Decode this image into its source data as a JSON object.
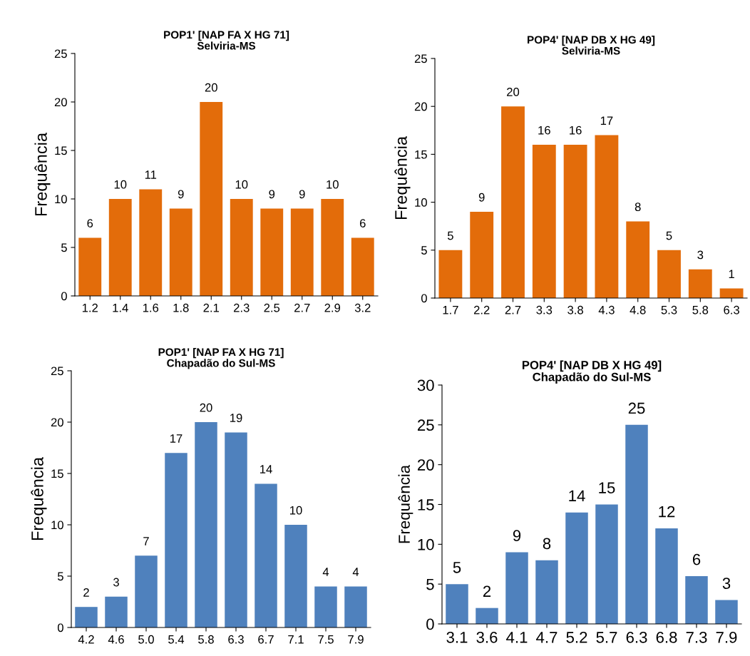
{
  "chart_data": [
    {
      "type": "bar",
      "title": "POP1' [NAP FA X HG 71]\nSelviria-MS",
      "ylabel": "Frequência",
      "categories": [
        "1.2",
        "1.4",
        "1.6",
        "1.8",
        "2.1",
        "2.3",
        "2.5",
        "2.7",
        "2.9",
        "3.2"
      ],
      "values": [
        6,
        10,
        11,
        9,
        20,
        10,
        9,
        9,
        10,
        6
      ],
      "color": "#e36c0a",
      "ylim": [
        0,
        25
      ],
      "yticks": [
        0,
        5,
        10,
        15,
        20,
        25
      ],
      "data_labels": true
    },
    {
      "type": "bar",
      "title": "POP4' [NAP DB X HG 49]\nSelviria-MS",
      "ylabel": "Frequência",
      "categories": [
        "1.7",
        "2.2",
        "2.7",
        "3.3",
        "3.8",
        "4.3",
        "4.8",
        "5.3",
        "5.8",
        "6.3"
      ],
      "values": [
        5,
        9,
        20,
        16,
        16,
        17,
        8,
        5,
        3,
        1
      ],
      "color": "#e36c0a",
      "ylim": [
        0,
        25
      ],
      "yticks": [
        0,
        5,
        10,
        15,
        20,
        25
      ],
      "data_labels": true
    },
    {
      "type": "bar",
      "title": "POP1' [NAP FA X HG 71]\nChapadão do Sul-MS",
      "ylabel": "Frequência",
      "categories": [
        "4.2",
        "4.6",
        "5.0",
        "5.4",
        "5.8",
        "6.3",
        "6.7",
        "7.1",
        "7.5",
        "7.9"
      ],
      "values": [
        2,
        3,
        7,
        17,
        20,
        19,
        14,
        10,
        4,
        4
      ],
      "color": "#4f81bd",
      "ylim": [
        0,
        25
      ],
      "yticks": [
        0,
        5,
        10,
        15,
        20,
        25
      ],
      "data_labels": true
    },
    {
      "type": "bar",
      "title": "POP4' [NAP DB X HG 49]\nChapadão do Sul-MS",
      "ylabel": "Frequência",
      "categories": [
        "3.1",
        "3.6",
        "4.1",
        "4.7",
        "5.2",
        "5.7",
        "6.3",
        "6.8",
        "7.3",
        "7.9"
      ],
      "values": [
        5,
        2,
        9,
        8,
        14,
        15,
        25,
        12,
        6,
        3
      ],
      "color": "#4f81bd",
      "ylim": [
        0,
        30
      ],
      "yticks": [
        0,
        5,
        10,
        15,
        20,
        25,
        30
      ],
      "data_labels": true
    }
  ]
}
